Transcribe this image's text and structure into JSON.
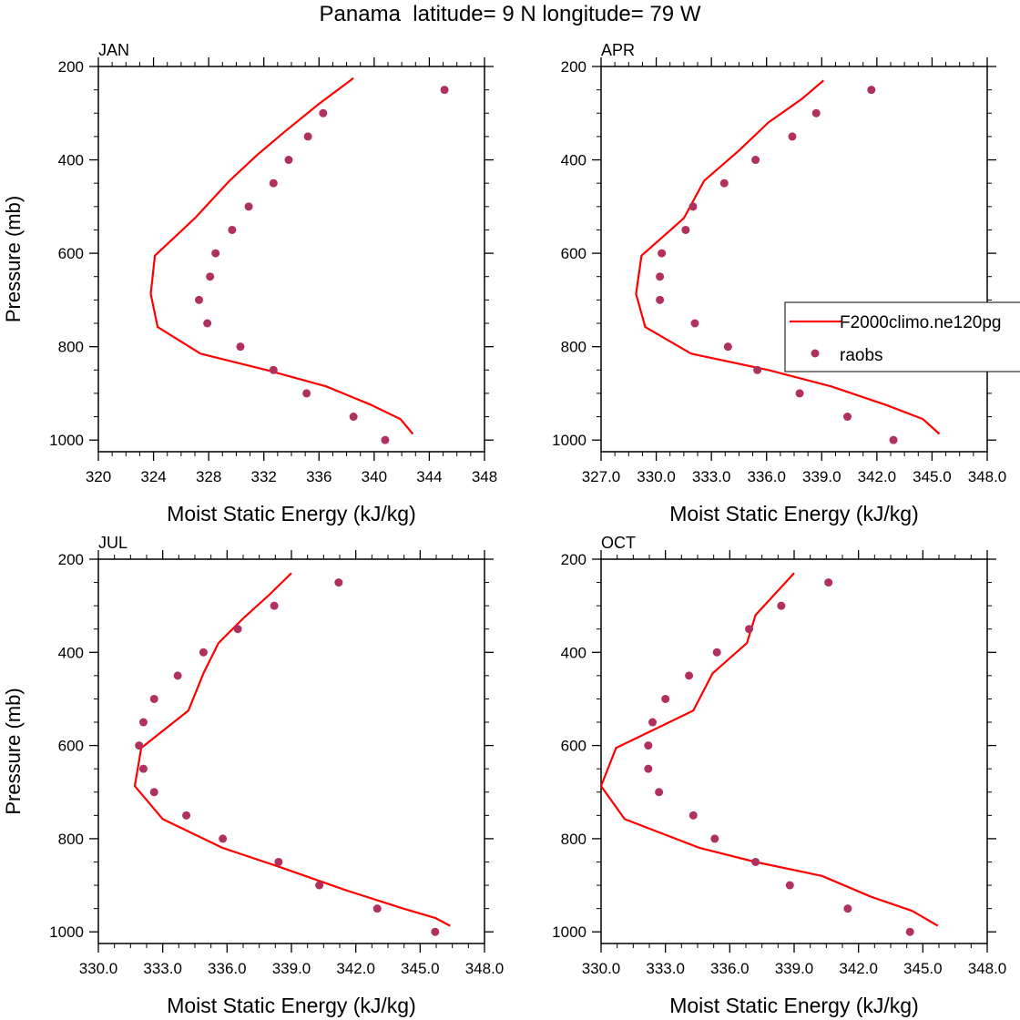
{
  "title": "Panama  latitude= 9 N longitude= 79 W",
  "colors": {
    "model": "#ff0000",
    "obs": "#b03060",
    "axis": "#000000"
  },
  "legend": {
    "placement": "right of APR panel",
    "model_label": "F2000climo.ne120pg",
    "obs_label": "raobs"
  },
  "chart_data": [
    {
      "type": "line",
      "month": "JAN",
      "xlabel": "Moist Static Energy (kJ/kg)",
      "ylabel": "Pressure (mb)",
      "xlim": [
        320,
        348
      ],
      "ylim": [
        1025,
        200
      ],
      "xticks": [
        320,
        324,
        328,
        332,
        336,
        340,
        344,
        348
      ],
      "xtick_labels": [
        "320",
        "324",
        "328",
        "332",
        "336",
        "340",
        "344",
        "348"
      ],
      "yticks": [
        200,
        400,
        600,
        800,
        1000
      ],
      "yminor": [
        250,
        300,
        350,
        450,
        500,
        550,
        650,
        700,
        750,
        850,
        900,
        950
      ],
      "model": [
        {
          "x": 338.5,
          "y": 225
        },
        {
          "x": 336.0,
          "y": 280
        },
        {
          "x": 333.5,
          "y": 340
        },
        {
          "x": 331.5,
          "y": 390
        },
        {
          "x": 329.5,
          "y": 445
        },
        {
          "x": 327.0,
          "y": 525
        },
        {
          "x": 324.1,
          "y": 605
        },
        {
          "x": 323.8,
          "y": 687
        },
        {
          "x": 324.3,
          "y": 758
        },
        {
          "x": 327.4,
          "y": 815
        },
        {
          "x": 332.2,
          "y": 850
        },
        {
          "x": 336.5,
          "y": 885
        },
        {
          "x": 339.8,
          "y": 925
        },
        {
          "x": 341.9,
          "y": 955
        },
        {
          "x": 342.8,
          "y": 987
        }
      ],
      "obs": [
        {
          "x": 345.1,
          "y": 250
        },
        {
          "x": 336.3,
          "y": 300
        },
        {
          "x": 335.2,
          "y": 350
        },
        {
          "x": 333.8,
          "y": 400
        },
        {
          "x": 332.7,
          "y": 450
        },
        {
          "x": 330.9,
          "y": 500
        },
        {
          "x": 329.7,
          "y": 550
        },
        {
          "x": 328.5,
          "y": 600
        },
        {
          "x": 328.1,
          "y": 650
        },
        {
          "x": 327.3,
          "y": 700
        },
        {
          "x": 327.9,
          "y": 750
        },
        {
          "x": 330.3,
          "y": 800
        },
        {
          "x": 332.7,
          "y": 850
        },
        {
          "x": 335.1,
          "y": 900
        },
        {
          "x": 338.5,
          "y": 950
        },
        {
          "x": 340.8,
          "y": 1000
        }
      ]
    },
    {
      "type": "line",
      "month": "APR",
      "xlabel": "Moist Static Energy (kJ/kg)",
      "ylabel": "",
      "xlim": [
        327,
        348
      ],
      "ylim": [
        1025,
        200
      ],
      "xticks": [
        327,
        330,
        333,
        336,
        339,
        342,
        345,
        348
      ],
      "xtick_labels": [
        "327.0",
        "330.0",
        "333.0",
        "336.0",
        "339.0",
        "342.0",
        "345.0",
        "348.0"
      ],
      "yticks": [
        200,
        400,
        600,
        800,
        1000
      ],
      "yminor": [
        250,
        300,
        350,
        450,
        500,
        550,
        650,
        700,
        750,
        850,
        900,
        950
      ],
      "model": [
        {
          "x": 339.1,
          "y": 230
        },
        {
          "x": 337.9,
          "y": 270
        },
        {
          "x": 336.1,
          "y": 320
        },
        {
          "x": 334.5,
          "y": 380
        },
        {
          "x": 332.6,
          "y": 445
        },
        {
          "x": 331.5,
          "y": 525
        },
        {
          "x": 329.2,
          "y": 605
        },
        {
          "x": 328.9,
          "y": 687
        },
        {
          "x": 329.4,
          "y": 758
        },
        {
          "x": 331.9,
          "y": 815
        },
        {
          "x": 336.1,
          "y": 850
        },
        {
          "x": 339.5,
          "y": 885
        },
        {
          "x": 342.5,
          "y": 925
        },
        {
          "x": 344.5,
          "y": 955
        },
        {
          "x": 345.4,
          "y": 987
        }
      ],
      "obs": [
        {
          "x": 341.7,
          "y": 250
        },
        {
          "x": 338.7,
          "y": 300
        },
        {
          "x": 337.4,
          "y": 350
        },
        {
          "x": 335.4,
          "y": 400
        },
        {
          "x": 333.7,
          "y": 450
        },
        {
          "x": 332.0,
          "y": 500
        },
        {
          "x": 331.6,
          "y": 550
        },
        {
          "x": 330.3,
          "y": 600
        },
        {
          "x": 330.2,
          "y": 650
        },
        {
          "x": 330.2,
          "y": 700
        },
        {
          "x": 332.1,
          "y": 750
        },
        {
          "x": 333.9,
          "y": 800
        },
        {
          "x": 335.5,
          "y": 850
        },
        {
          "x": 337.8,
          "y": 900
        },
        {
          "x": 340.4,
          "y": 950
        },
        {
          "x": 342.9,
          "y": 1000
        }
      ]
    },
    {
      "type": "line",
      "month": "JUL",
      "xlabel": "Moist Static Energy (kJ/kg)",
      "ylabel": "Pressure (mb)",
      "xlim": [
        330,
        348
      ],
      "ylim": [
        1025,
        200
      ],
      "xticks": [
        330,
        333,
        336,
        339,
        342,
        345,
        348
      ],
      "xtick_labels": [
        "330.0",
        "333.0",
        "336.0",
        "339.0",
        "342.0",
        "345.0",
        "348.0"
      ],
      "yticks": [
        200,
        400,
        600,
        800,
        1000
      ],
      "yminor": [
        250,
        300,
        350,
        450,
        500,
        550,
        650,
        700,
        750,
        850,
        900,
        950
      ],
      "model": [
        {
          "x": 339.0,
          "y": 230
        },
        {
          "x": 338.0,
          "y": 275
        },
        {
          "x": 336.8,
          "y": 325
        },
        {
          "x": 335.6,
          "y": 380
        },
        {
          "x": 334.9,
          "y": 445
        },
        {
          "x": 334.2,
          "y": 525
        },
        {
          "x": 332.0,
          "y": 605
        },
        {
          "x": 331.7,
          "y": 687
        },
        {
          "x": 333.0,
          "y": 758
        },
        {
          "x": 335.8,
          "y": 820
        },
        {
          "x": 338.4,
          "y": 860
        },
        {
          "x": 341.5,
          "y": 910
        },
        {
          "x": 344.2,
          "y": 950
        },
        {
          "x": 345.7,
          "y": 970
        },
        {
          "x": 346.4,
          "y": 987
        }
      ],
      "obs": [
        {
          "x": 341.2,
          "y": 250
        },
        {
          "x": 338.2,
          "y": 300
        },
        {
          "x": 336.5,
          "y": 350
        },
        {
          "x": 334.9,
          "y": 400
        },
        {
          "x": 333.7,
          "y": 450
        },
        {
          "x": 332.6,
          "y": 500
        },
        {
          "x": 332.1,
          "y": 550
        },
        {
          "x": 331.9,
          "y": 600
        },
        {
          "x": 332.1,
          "y": 650
        },
        {
          "x": 332.6,
          "y": 700
        },
        {
          "x": 334.1,
          "y": 750
        },
        {
          "x": 335.8,
          "y": 800
        },
        {
          "x": 338.4,
          "y": 850
        },
        {
          "x": 340.3,
          "y": 900
        },
        {
          "x": 343.0,
          "y": 950
        },
        {
          "x": 345.7,
          "y": 1000
        }
      ]
    },
    {
      "type": "line",
      "month": "OCT",
      "xlabel": "Moist Static Energy (kJ/kg)",
      "ylabel": "",
      "xlim": [
        330,
        348
      ],
      "ylim": [
        1025,
        200
      ],
      "xticks": [
        330,
        333,
        336,
        339,
        342,
        345,
        348
      ],
      "xtick_labels": [
        "330.0",
        "333.0",
        "336.0",
        "339.0",
        "342.0",
        "345.0",
        "348.0"
      ],
      "yticks": [
        200,
        400,
        600,
        800,
        1000
      ],
      "yminor": [
        250,
        300,
        350,
        450,
        500,
        550,
        650,
        700,
        750,
        850,
        900,
        950
      ],
      "model": [
        {
          "x": 339.0,
          "y": 230
        },
        {
          "x": 337.2,
          "y": 320
        },
        {
          "x": 336.8,
          "y": 380
        },
        {
          "x": 335.2,
          "y": 445
        },
        {
          "x": 334.3,
          "y": 525
        },
        {
          "x": 330.7,
          "y": 605
        },
        {
          "x": 330.0,
          "y": 687
        },
        {
          "x": 331.1,
          "y": 758
        },
        {
          "x": 334.6,
          "y": 820
        },
        {
          "x": 337.2,
          "y": 850
        },
        {
          "x": 340.3,
          "y": 880
        },
        {
          "x": 342.6,
          "y": 925
        },
        {
          "x": 344.5,
          "y": 955
        },
        {
          "x": 345.7,
          "y": 987
        }
      ],
      "obs": [
        {
          "x": 340.6,
          "y": 250
        },
        {
          "x": 338.4,
          "y": 300
        },
        {
          "x": 336.9,
          "y": 350
        },
        {
          "x": 335.4,
          "y": 400
        },
        {
          "x": 334.1,
          "y": 450
        },
        {
          "x": 333.0,
          "y": 500
        },
        {
          "x": 332.4,
          "y": 550
        },
        {
          "x": 332.2,
          "y": 600
        },
        {
          "x": 332.2,
          "y": 650
        },
        {
          "x": 332.7,
          "y": 700
        },
        {
          "x": 334.3,
          "y": 750
        },
        {
          "x": 335.3,
          "y": 800
        },
        {
          "x": 337.2,
          "y": 850
        },
        {
          "x": 338.8,
          "y": 900
        },
        {
          "x": 341.5,
          "y": 950
        },
        {
          "x": 344.4,
          "y": 1000
        }
      ]
    }
  ]
}
